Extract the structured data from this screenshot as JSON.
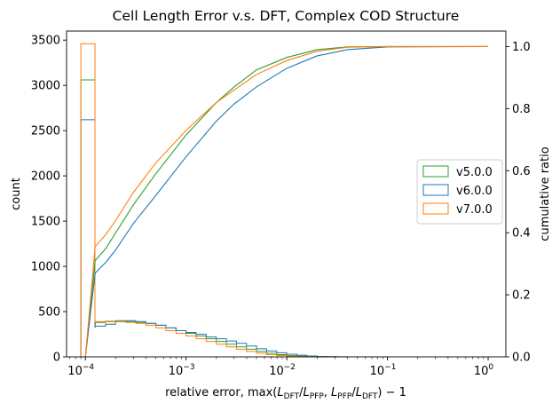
{
  "chart_data": {
    "type": "histogram+cumulative-line",
    "title": "Cell Length Error v.s. DFT, Complex COD Structure",
    "xlabel": "relative error, max(L_DFT/L_PFP, L_PFP/L_DFT) − 1",
    "xlabel_parts": {
      "prefix": "relative error, max(",
      "l1": "L",
      "s1": "DFT",
      "slash1": "/",
      "l2": "L",
      "s2": "PFP",
      "sep": ", ",
      "l3": "L",
      "s3": "PFP",
      "slash2": "/",
      "l4": "L",
      "s4": "DFT",
      "suffix": ") − 1"
    },
    "ylabel_left": "count",
    "ylabel_right": "cumulative ratio",
    "xscale": "log",
    "xlim": [
      6.5e-05,
      1.5
    ],
    "ylim_left": [
      0,
      3600
    ],
    "ylim_right": [
      0,
      1.05
    ],
    "x_ticks": [
      {
        "value": 0.0001,
        "base": "10",
        "exp": "−4"
      },
      {
        "value": 0.001,
        "base": "10",
        "exp": "−3"
      },
      {
        "value": 0.01,
        "base": "10",
        "exp": "−2"
      },
      {
        "value": 0.1,
        "base": "10",
        "exp": "−1"
      },
      {
        "value": 1,
        "base": "10",
        "exp": "0"
      }
    ],
    "y_ticks_left": [
      0,
      500,
      1000,
      1500,
      2000,
      2500,
      3000,
      3500
    ],
    "y_ticks_right": [
      0.0,
      0.2,
      0.4,
      0.6,
      0.8,
      1.0
    ],
    "legend_position": "center-right",
    "bin_edges_log10": [
      -4.0,
      -3.9,
      -3.8,
      -3.7,
      -3.6,
      -3.5,
      -3.4,
      -3.3,
      -3.2,
      -3.1,
      -3.0,
      -2.9,
      -2.8,
      -2.7,
      -2.6,
      -2.5,
      -2.4,
      -2.3,
      -2.2,
      -2.1,
      -2.0,
      -1.9,
      -1.8,
      -1.7,
      -1.6,
      -1.5,
      -1.4,
      -1.3,
      -1.2,
      -1.1,
      -1.0
    ],
    "series": [
      {
        "name": "v5.0.0",
        "color": "#2ca02c",
        "spike_value": 3060,
        "hist": [
          360,
          380,
          390,
          400,
          390,
          380,
          370,
          350,
          320,
          290,
          260,
          230,
          200,
          170,
          140,
          110,
          85,
          60,
          40,
          25,
          15,
          8,
          5,
          2,
          1,
          0,
          0,
          0,
          0,
          0
        ],
        "cumulative": [
          {
            "x": 0.000125,
            "y": 0.31
          },
          {
            "x": 0.00016,
            "y": 0.35
          },
          {
            "x": 0.0002,
            "y": 0.4
          },
          {
            "x": 0.0003,
            "y": 0.49
          },
          {
            "x": 0.0005,
            "y": 0.59
          },
          {
            "x": 0.001,
            "y": 0.715
          },
          {
            "x": 0.002,
            "y": 0.82
          },
          {
            "x": 0.003,
            "y": 0.87
          },
          {
            "x": 0.005,
            "y": 0.925
          },
          {
            "x": 0.01,
            "y": 0.965
          },
          {
            "x": 0.02,
            "y": 0.99
          },
          {
            "x": 0.04,
            "y": 0.999
          },
          {
            "x": 0.1,
            "y": 1.0
          },
          {
            "x": 1,
            "y": 1.0
          }
        ]
      },
      {
        "name": "v6.0.0",
        "color": "#1f77b4",
        "spike_value": 2620,
        "hist": [
          330,
          340,
          360,
          390,
          400,
          390,
          370,
          350,
          320,
          290,
          270,
          250,
          220,
          200,
          175,
          150,
          120,
          90,
          65,
          45,
          30,
          18,
          10,
          5,
          2,
          1,
          0,
          0,
          0,
          0
        ],
        "cumulative": [
          {
            "x": 0.000125,
            "y": 0.27
          },
          {
            "x": 0.00016,
            "y": 0.305
          },
          {
            "x": 0.0002,
            "y": 0.345
          },
          {
            "x": 0.0003,
            "y": 0.43
          },
          {
            "x": 0.0005,
            "y": 0.52
          },
          {
            "x": 0.001,
            "y": 0.645
          },
          {
            "x": 0.002,
            "y": 0.76
          },
          {
            "x": 0.003,
            "y": 0.815
          },
          {
            "x": 0.005,
            "y": 0.87
          },
          {
            "x": 0.01,
            "y": 0.93
          },
          {
            "x": 0.02,
            "y": 0.97
          },
          {
            "x": 0.04,
            "y": 0.99
          },
          {
            "x": 0.1,
            "y": 0.999
          },
          {
            "x": 1,
            "y": 1.0
          }
        ]
      },
      {
        "name": "v7.0.0",
        "color": "#ff7f0e",
        "spike_value": 3460,
        "hist": [
          380,
          390,
          395,
          390,
          380,
          370,
          350,
          320,
          290,
          260,
          230,
          200,
          170,
          140,
          110,
          85,
          60,
          40,
          25,
          15,
          8,
          4,
          2,
          1,
          0,
          0,
          0,
          0,
          0,
          0
        ],
        "cumulative": [
          {
            "x": 0.000125,
            "y": 0.355
          },
          {
            "x": 0.00016,
            "y": 0.395
          },
          {
            "x": 0.0002,
            "y": 0.44
          },
          {
            "x": 0.0003,
            "y": 0.53
          },
          {
            "x": 0.0005,
            "y": 0.625
          },
          {
            "x": 0.001,
            "y": 0.73
          },
          {
            "x": 0.002,
            "y": 0.82
          },
          {
            "x": 0.003,
            "y": 0.86
          },
          {
            "x": 0.005,
            "y": 0.91
          },
          {
            "x": 0.01,
            "y": 0.955
          },
          {
            "x": 0.02,
            "y": 0.985
          },
          {
            "x": 0.04,
            "y": 0.998
          },
          {
            "x": 0.1,
            "y": 1.0
          },
          {
            "x": 1,
            "y": 1.0
          }
        ]
      }
    ]
  }
}
